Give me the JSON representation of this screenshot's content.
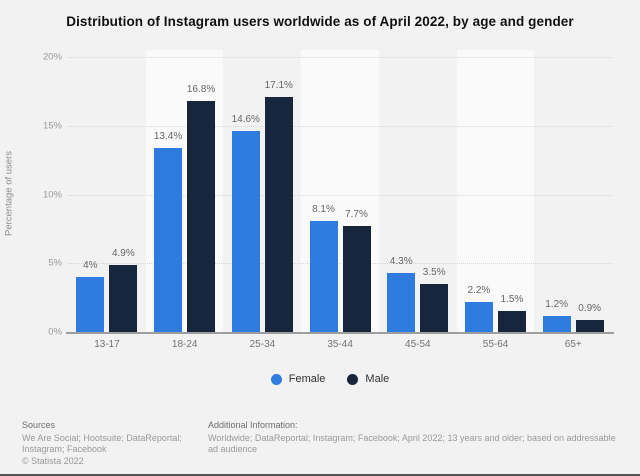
{
  "chart_data": {
    "type": "bar",
    "title": "Distribution of Instagram users worldwide as of April 2022, by age and gender",
    "xlabel": "",
    "ylabel": "Percentage of users",
    "ylim": [
      0,
      20
    ],
    "yticks": [
      0,
      5,
      10,
      15,
      20
    ],
    "ytick_labels": [
      "0%",
      "5%",
      "10%",
      "15%",
      "20%"
    ],
    "grid": "horizontal dotted lines, alternating vertical category bands",
    "legend_position": "bottom-center",
    "categories": [
      "13-17",
      "18-24",
      "25-34",
      "35-44",
      "45-54",
      "55-64",
      "65+"
    ],
    "series": [
      {
        "name": "Female",
        "color": "#2e7ce0",
        "values": [
          4,
          13.4,
          14.6,
          8.1,
          4.3,
          2.2,
          1.2
        ],
        "labels": [
          "4%",
          "13.4%",
          "14.6%",
          "8.1%",
          "4.3%",
          "2.2%",
          "1.2%"
        ]
      },
      {
        "name": "Male",
        "color": "#17263d",
        "values": [
          4.9,
          16.8,
          17.1,
          7.7,
          3.5,
          1.5,
          0.9
        ],
        "labels": [
          "4.9%",
          "16.8%",
          "17.1%",
          "7.7%",
          "3.5%",
          "1.5%",
          "0.9%"
        ]
      }
    ]
  },
  "footer": {
    "sources_heading": "Sources",
    "sources_line1": "We Are Social; Hootsuite; DataReportal;",
    "sources_line2": "Instagram; Facebook",
    "copyright": "© Statista 2022",
    "additional_heading": "Additional Information:",
    "additional_text": "Worldwide; DataReportal; Instagram; Facebook; April 2022; 13 years and older; based on addressable ad audience"
  },
  "colors": {
    "canvas": "#f2f2f2",
    "band_light": "#fafafa",
    "female": "#2e7ce0",
    "male": "#17263d",
    "grid_line": "#d6d6d6",
    "axis_line": "#9e9e9e",
    "value_label": "#666666",
    "tick_label": "#999999",
    "title_text": "#111111"
  }
}
